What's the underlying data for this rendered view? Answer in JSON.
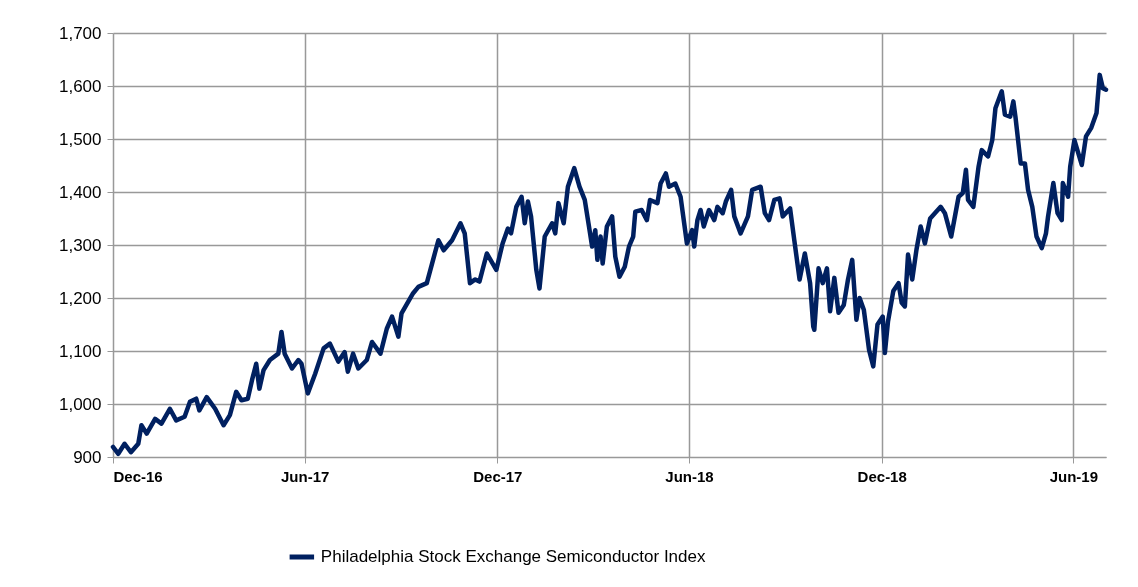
{
  "chart_data": {
    "type": "line",
    "x": [
      "2016-12-01",
      "2016-12-06",
      "2016-12-12",
      "2016-12-18",
      "2016-12-25",
      "2016-12-28",
      "2017-01-02",
      "2017-01-10",
      "2017-01-16",
      "2017-01-24",
      "2017-01-30",
      "2017-02-07",
      "2017-02-12",
      "2017-02-18",
      "2017-02-21",
      "2017-02-28",
      "2017-03-08",
      "2017-03-16",
      "2017-03-22",
      "2017-03-28",
      "2017-04-02",
      "2017-04-08",
      "2017-04-12",
      "2017-04-16",
      "2017-04-19",
      "2017-04-23",
      "2017-04-29",
      "2017-05-07",
      "2017-05-10",
      "2017-05-13",
      "2017-05-20",
      "2017-05-26",
      "2017-05-29",
      "2017-06-04",
      "2017-06-11",
      "2017-06-19",
      "2017-06-25",
      "2017-07-03",
      "2017-07-09",
      "2017-07-12",
      "2017-07-17",
      "2017-07-22",
      "2017-07-30",
      "2017-08-04",
      "2017-08-12",
      "2017-08-18",
      "2017-08-23",
      "2017-08-29",
      "2017-09-01",
      "2017-09-12",
      "2017-09-17",
      "2017-09-25",
      "2017-09-30",
      "2017-10-06",
      "2017-10-11",
      "2017-10-19",
      "2017-10-27",
      "2017-10-31",
      "2017-11-05",
      "2017-11-10",
      "2017-11-14",
      "2017-11-21",
      "2017-11-30",
      "2017-12-06",
      "2017-12-11",
      "2017-12-14",
      "2017-12-19",
      "2017-12-24",
      "2017-12-27",
      "2017-12-30",
      "2018-01-02",
      "2018-01-07",
      "2018-01-10",
      "2018-01-15",
      "2018-01-22",
      "2018-01-25",
      "2018-01-28",
      "2018-02-02",
      "2018-02-06",
      "2018-02-12",
      "2018-02-17",
      "2018-02-22",
      "2018-02-26",
      "2018-03-01",
      "2018-03-04",
      "2018-03-06",
      "2018-03-09",
      "2018-03-11",
      "2018-03-15",
      "2018-03-20",
      "2018-03-23",
      "2018-03-27",
      "2018-04-01",
      "2018-04-05",
      "2018-04-09",
      "2018-04-11",
      "2018-04-17",
      "2018-04-22",
      "2018-04-25",
      "2018-05-02",
      "2018-05-05",
      "2018-05-10",
      "2018-05-13",
      "2018-05-19",
      "2018-05-24",
      "2018-05-30",
      "2018-06-04",
      "2018-06-06",
      "2018-06-09",
      "2018-06-12",
      "2018-06-15",
      "2018-06-20",
      "2018-06-25",
      "2018-06-28",
      "2018-07-03",
      "2018-07-06",
      "2018-07-11",
      "2018-07-14",
      "2018-07-20",
      "2018-07-27",
      "2018-07-31",
      "2018-08-08",
      "2018-08-12",
      "2018-08-16",
      "2018-08-21",
      "2018-08-26",
      "2018-08-29",
      "2018-09-05",
      "2018-09-09",
      "2018-09-14",
      "2018-09-19",
      "2018-09-24",
      "2018-09-27",
      "2018-09-28",
      "2018-10-02",
      "2018-10-06",
      "2018-10-10",
      "2018-10-13",
      "2018-10-17",
      "2018-10-21",
      "2018-10-26",
      "2018-10-30",
      "2018-11-03",
      "2018-11-07",
      "2018-11-10",
      "2018-11-14",
      "2018-11-19",
      "2018-11-23",
      "2018-11-27",
      "2018-12-02",
      "2018-12-04",
      "2018-12-07",
      "2018-12-12",
      "2018-12-17",
      "2018-12-20",
      "2018-12-23",
      "2018-12-26",
      "2018-12-30",
      "2019-01-03",
      "2019-01-07",
      "2019-01-11",
      "2019-01-16",
      "2019-01-26",
      "2019-01-30",
      "2019-02-05",
      "2019-02-12",
      "2019-02-16",
      "2019-02-19",
      "2019-02-21",
      "2019-02-26",
      "2019-03-03",
      "2019-03-06",
      "2019-03-12",
      "2019-03-16",
      "2019-03-19",
      "2019-03-25",
      "2019-03-28",
      "2019-04-02",
      "2019-04-05",
      "2019-04-07",
      "2019-04-12",
      "2019-04-16",
      "2019-04-19",
      "2019-04-23",
      "2019-04-27",
      "2019-05-02",
      "2019-05-06",
      "2019-05-08",
      "2019-05-13",
      "2019-05-17",
      "2019-05-21",
      "2019-05-22",
      "2019-05-27",
      "2019-05-29",
      "2019-06-02",
      "2019-06-09",
      "2019-06-13",
      "2019-06-18",
      "2019-06-23",
      "2019-06-26",
      "2019-06-29",
      "2019-07-02"
    ],
    "series": [
      {
        "name": "Philadelphia Stock Exchange Semiconductor Index",
        "color": "#002060",
        "values": [
          919,
          906,
          925,
          909,
          925,
          960,
          944,
          972,
          963,
          991,
          969,
          976,
          1004,
          1010,
          988,
          1013,
          991,
          960,
          979,
          1023,
          1007,
          1010,
          1045,
          1076,
          1029,
          1064,
          1083,
          1095,
          1136,
          1095,
          1067,
          1083,
          1076,
          1020,
          1057,
          1105,
          1114,
          1080,
          1098,
          1061,
          1095,
          1067,
          1083,
          1117,
          1095,
          1142,
          1165,
          1127,
          1171,
          1209,
          1221,
          1228,
          1265,
          1309,
          1290,
          1309,
          1341,
          1322,
          1228,
          1235,
          1231,
          1284,
          1253,
          1303,
          1331,
          1322,
          1372,
          1391,
          1341,
          1382,
          1354,
          1253,
          1218,
          1316,
          1341,
          1322,
          1379,
          1341,
          1410,
          1445,
          1410,
          1385,
          1335,
          1297,
          1328,
          1272,
          1316,
          1265,
          1335,
          1354,
          1278,
          1240,
          1259,
          1297,
          1316,
          1363,
          1366,
          1347,
          1385,
          1379,
          1416,
          1435,
          1410,
          1416,
          1391,
          1303,
          1328,
          1297,
          1347,
          1366,
          1335,
          1366,
          1347,
          1372,
          1360,
          1382,
          1404,
          1354,
          1322,
          1354,
          1404,
          1410,
          1360,
          1347,
          1385,
          1388,
          1354,
          1369,
          1309,
          1235,
          1284,
          1228,
          1146,
          1140,
          1256,
          1228,
          1256,
          1175,
          1238,
          1172,
          1187,
          1235,
          1272,
          1159,
          1200,
          1178,
          1102,
          1071,
          1150,
          1165,
          1096,
          1156,
          1213,
          1228,
          1191,
          1184,
          1282,
          1235,
          1291,
          1335,
          1303,
          1350,
          1372,
          1360,
          1316,
          1391,
          1398,
          1442,
          1385,
          1372,
          1448,
          1479,
          1467,
          1498,
          1558,
          1590,
          1546,
          1542,
          1571,
          1542,
          1454,
          1454,
          1404,
          1372,
          1316,
          1294,
          1322,
          1354,
          1417,
          1360,
          1347,
          1417,
          1391,
          1448,
          1498,
          1451,
          1505,
          1521,
          1549,
          1621,
          1596,
          1593
        ]
      }
    ],
    "xlim": [
      "2016-12-01",
      "2019-07-02"
    ],
    "xticks": [
      {
        "value": "2016-12-01",
        "label": "Dec-16"
      },
      {
        "value": "2017-06-01",
        "label": "Jun-17"
      },
      {
        "value": "2017-12-01",
        "label": "Dec-17"
      },
      {
        "value": "2018-06-01",
        "label": "Jun-18"
      },
      {
        "value": "2018-12-01",
        "label": "Dec-18"
      },
      {
        "value": "2019-06-01",
        "label": "Jun-19"
      }
    ],
    "ylim": [
      900,
      1700
    ],
    "yticks": [
      {
        "value": 900,
        "label": "900"
      },
      {
        "value": 1000,
        "label": "1,000"
      },
      {
        "value": 1100,
        "label": "1,100"
      },
      {
        "value": 1200,
        "label": "1,200"
      },
      {
        "value": 1300,
        "label": "1,300"
      },
      {
        "value": 1400,
        "label": "1,400"
      },
      {
        "value": 1500,
        "label": "1,500"
      },
      {
        "value": 1600,
        "label": "1,600"
      },
      {
        "value": 1700,
        "label": "1,700"
      }
    ],
    "grid": true,
    "legend": "bottom",
    "marker": "none",
    "line_style": "solid"
  }
}
